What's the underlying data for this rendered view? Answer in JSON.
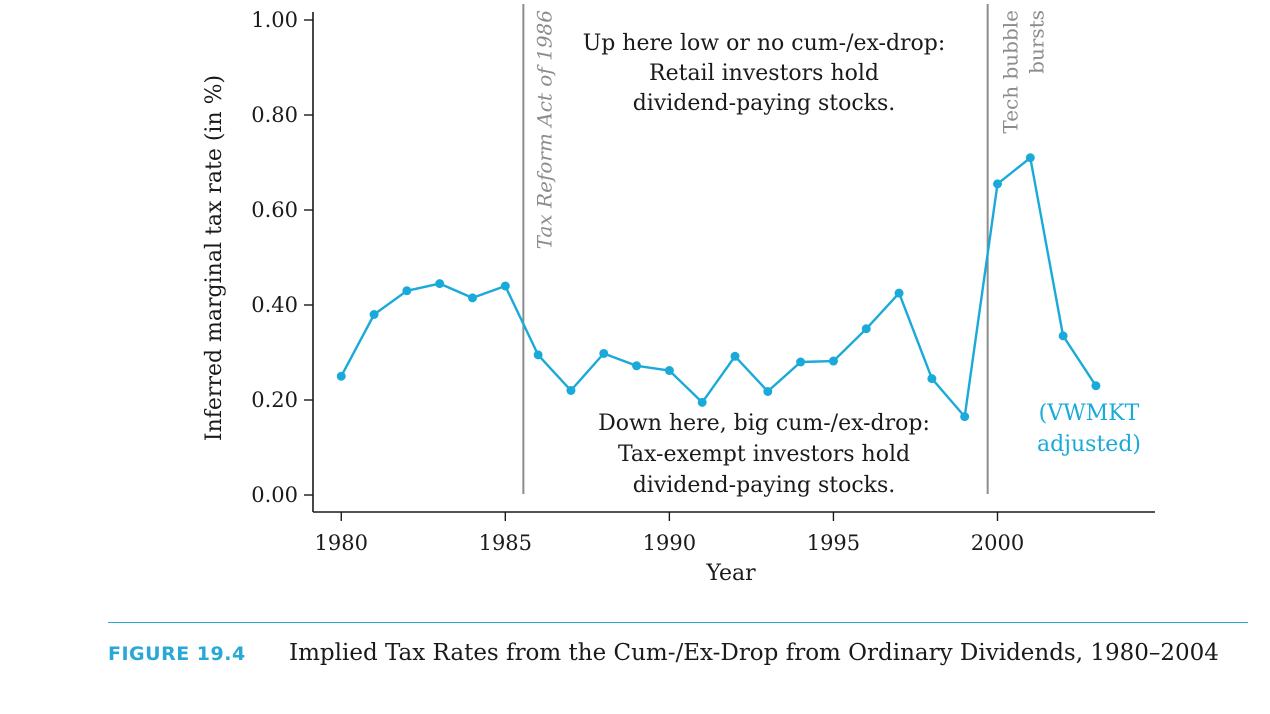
{
  "chart_data": {
    "type": "line",
    "xlabel": "Year",
    "ylabel": "Inferred marginal tax rate (in %)",
    "xlim": [
      1979.2,
      2004.8
    ],
    "ylim": [
      0,
      1.0
    ],
    "x_ticks": [
      1980,
      1985,
      1990,
      1995,
      2000
    ],
    "x_tick_labels": [
      "1980",
      "1985",
      "1990",
      "1995",
      "2000"
    ],
    "y_ticks": [
      0,
      0.2,
      0.4,
      0.6,
      0.8,
      1.0
    ],
    "y_tick_labels": [
      "0.00",
      "0.20",
      "0.40",
      "0.60",
      "0.80",
      "1.00"
    ],
    "grid": false,
    "series": [
      {
        "name": "(VWMKT adjusted)",
        "color": "#1aaad9",
        "x": [
          1980,
          1981,
          1982,
          1983,
          1984,
          1985,
          1986,
          1987,
          1988,
          1989,
          1990,
          1991,
          1992,
          1993,
          1994,
          1995,
          1996,
          1997,
          1998,
          1999,
          2000,
          2001,
          2002,
          2003
        ],
        "y": [
          0.25,
          0.38,
          0.43,
          0.445,
          0.415,
          0.44,
          0.295,
          0.22,
          0.298,
          0.272,
          0.262,
          0.195,
          0.292,
          0.218,
          0.28,
          0.282,
          0.35,
          0.425,
          0.245,
          0.165,
          0.655,
          0.71,
          0.335,
          0.23
        ]
      }
    ],
    "vlines": [
      {
        "x": 1985.55,
        "label": "Tax Reform Act of 1986",
        "color": "#8c8c8c"
      },
      {
        "x": 1999.7,
        "label_lines": [
          "Tech bubble",
          "bursts"
        ],
        "color": "#8c8c8c"
      }
    ],
    "annotations": {
      "top": [
        "Up here low or no cum-/ex-drop:",
        "Retail investors hold",
        "dividend-paying stocks."
      ],
      "bottom": [
        "Down here, big cum-/ex-drop:",
        "Tax-exempt investors hold",
        "dividend-paying stocks."
      ],
      "series_label": [
        "(VWMKT",
        "adjusted)"
      ]
    }
  },
  "caption": {
    "label": "FIGURE 19.4",
    "title": "Implied Tax Rates from the Cum-/Ex-Drop from Ordinary Dividends, 1980–2004"
  }
}
